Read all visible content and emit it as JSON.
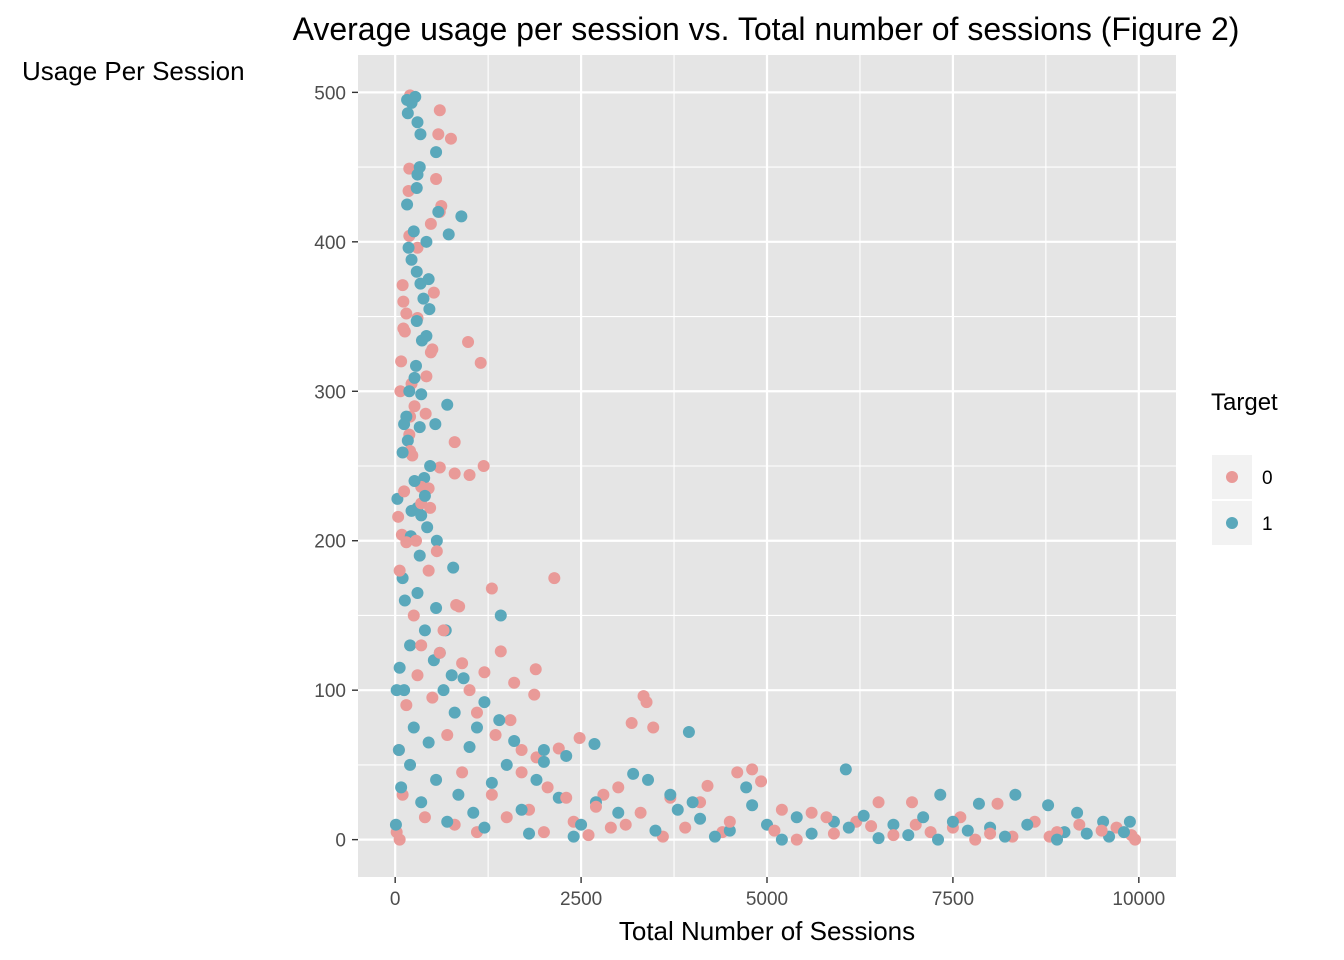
{
  "chart_data": {
    "type": "scatter",
    "title": "Average usage per session vs. Total number of sessions (Figure 2)",
    "xlabel": "Total Number of Sessions",
    "ylabel": "Usage Per Session",
    "xlim": [
      -500,
      10500
    ],
    "ylim": [
      -25,
      525
    ],
    "x_ticks": [
      0,
      2500,
      5000,
      7500,
      10000
    ],
    "x_tick_labels": [
      "0",
      "2500",
      "5000",
      "7500",
      "10000"
    ],
    "y_ticks": [
      0,
      100,
      200,
      300,
      400,
      500
    ],
    "y_tick_labels": [
      "0",
      "100",
      "200",
      "300",
      "400",
      "500"
    ],
    "x_minor_ticks": [
      1250,
      3750,
      6250,
      8750
    ],
    "y_minor_ticks": [
      50,
      150,
      250,
      350,
      450
    ],
    "grid": true,
    "panel_background": "#e5e5e5",
    "legend": {
      "title": "Target",
      "position": "right",
      "entries": [
        {
          "label": "0",
          "color": "#e99a98"
        },
        {
          "label": "1",
          "color": "#5aa8bb"
        }
      ]
    },
    "series": [
      {
        "name": "0",
        "color": "#e99a98",
        "points": [
          [
            200,
            498
          ],
          [
            600,
            488
          ],
          [
            580,
            472
          ],
          [
            750,
            469
          ],
          [
            190,
            449
          ],
          [
            180,
            434
          ],
          [
            550,
            442
          ],
          [
            620,
            424
          ],
          [
            600,
            420
          ],
          [
            480,
            412
          ],
          [
            190,
            404
          ],
          [
            300,
            396
          ],
          [
            100,
            371
          ],
          [
            520,
            366
          ],
          [
            110,
            360
          ],
          [
            150,
            352
          ],
          [
            300,
            349
          ],
          [
            130,
            340
          ],
          [
            110,
            342
          ],
          [
            980,
            333
          ],
          [
            500,
            328
          ],
          [
            480,
            326
          ],
          [
            1150,
            319
          ],
          [
            80,
            320
          ],
          [
            420,
            310
          ],
          [
            70,
            300
          ],
          [
            220,
            305
          ],
          [
            260,
            290
          ],
          [
            410,
            285
          ],
          [
            200,
            283
          ],
          [
            800,
            266
          ],
          [
            190,
            271
          ],
          [
            230,
            257
          ],
          [
            200,
            260
          ],
          [
            1190,
            250
          ],
          [
            600,
            249
          ],
          [
            800,
            245
          ],
          [
            1000,
            244
          ],
          [
            350,
            236
          ],
          [
            450,
            235
          ],
          [
            120,
            233
          ],
          [
            470,
            222
          ],
          [
            40,
            216
          ],
          [
            90,
            204
          ],
          [
            150,
            199
          ],
          [
            560,
            193
          ],
          [
            2140,
            175
          ],
          [
            1300,
            168
          ],
          [
            60,
            180
          ],
          [
            820,
            157
          ],
          [
            860,
            156
          ],
          [
            1420,
            126
          ],
          [
            1600,
            105
          ],
          [
            1890,
            114
          ],
          [
            1870,
            97
          ],
          [
            3340,
            96
          ],
          [
            3380,
            92
          ],
          [
            3180,
            78
          ],
          [
            3470,
            75
          ],
          [
            1200,
            112
          ],
          [
            1550,
            80
          ],
          [
            2480,
            68
          ],
          [
            2200,
            61
          ],
          [
            1700,
            60
          ],
          [
            1900,
            55
          ],
          [
            4800,
            47
          ],
          [
            4600,
            45
          ],
          [
            4920,
            39
          ],
          [
            4200,
            36
          ],
          [
            3000,
            35
          ],
          [
            2800,
            30
          ],
          [
            3700,
            28
          ],
          [
            4100,
            25
          ],
          [
            5200,
            20
          ],
          [
            5600,
            18
          ],
          [
            6500,
            25
          ],
          [
            6950,
            25
          ],
          [
            8100,
            24
          ],
          [
            7600,
            15
          ],
          [
            6200,
            12
          ],
          [
            5800,
            15
          ],
          [
            7000,
            10
          ],
          [
            7500,
            8
          ],
          [
            8600,
            12
          ],
          [
            9200,
            10
          ],
          [
            9700,
            8
          ],
          [
            9900,
            3
          ],
          [
            8900,
            5
          ],
          [
            8300,
            2
          ],
          [
            7800,
            0
          ],
          [
            6700,
            3
          ],
          [
            5400,
            0
          ],
          [
            4400,
            5
          ],
          [
            3600,
            2
          ],
          [
            2900,
            8
          ],
          [
            2400,
            12
          ],
          [
            1800,
            20
          ],
          [
            1300,
            30
          ],
          [
            900,
            45
          ],
          [
            700,
            70
          ],
          [
            500,
            95
          ],
          [
            300,
            110
          ],
          [
            150,
            90
          ],
          [
            50,
            60
          ],
          [
            100,
            30
          ],
          [
            20,
            5
          ],
          [
            60,
            0
          ],
          [
            400,
            15
          ],
          [
            800,
            10
          ],
          [
            1100,
            5
          ],
          [
            1500,
            15
          ],
          [
            2000,
            5
          ],
          [
            2600,
            3
          ],
          [
            3100,
            10
          ],
          [
            3900,
            8
          ],
          [
            4500,
            12
          ],
          [
            5100,
            6
          ],
          [
            5900,
            4
          ],
          [
            6400,
            9
          ],
          [
            7200,
            5
          ],
          [
            8000,
            4
          ],
          [
            8800,
            2
          ],
          [
            9500,
            6
          ],
          [
            9950,
            0
          ],
          [
            250,
            150
          ],
          [
            350,
            130
          ],
          [
            600,
            125
          ],
          [
            900,
            118
          ],
          [
            1000,
            100
          ],
          [
            450,
            180
          ],
          [
            280,
            200
          ],
          [
            350,
            225
          ],
          [
            650,
            140
          ],
          [
            1100,
            85
          ],
          [
            1350,
            70
          ],
          [
            1700,
            45
          ],
          [
            2050,
            35
          ],
          [
            2300,
            28
          ],
          [
            2700,
            22
          ],
          [
            3300,
            18
          ]
        ]
      },
      {
        "name": "1",
        "color": "#5aa8bb",
        "points": [
          [
            270,
            497
          ],
          [
            160,
            495
          ],
          [
            220,
            493
          ],
          [
            300,
            480
          ],
          [
            340,
            472
          ],
          [
            170,
            486
          ],
          [
            550,
            460
          ],
          [
            330,
            450
          ],
          [
            300,
            445
          ],
          [
            290,
            436
          ],
          [
            160,
            425
          ],
          [
            580,
            420
          ],
          [
            890,
            417
          ],
          [
            720,
            405
          ],
          [
            420,
            400
          ],
          [
            180,
            396
          ],
          [
            250,
            407
          ],
          [
            220,
            388
          ],
          [
            290,
            380
          ],
          [
            340,
            372
          ],
          [
            450,
            375
          ],
          [
            380,
            362
          ],
          [
            460,
            355
          ],
          [
            290,
            347
          ],
          [
            420,
            337
          ],
          [
            360,
            334
          ],
          [
            280,
            317
          ],
          [
            350,
            298
          ],
          [
            700,
            291
          ],
          [
            260,
            309
          ],
          [
            150,
            283
          ],
          [
            170,
            267
          ],
          [
            540,
            278
          ],
          [
            120,
            278
          ],
          [
            330,
            276
          ],
          [
            100,
            259
          ],
          [
            470,
            250
          ],
          [
            390,
            242
          ],
          [
            30,
            228
          ],
          [
            300,
            222
          ],
          [
            220,
            220
          ],
          [
            350,
            217
          ],
          [
            430,
            209
          ],
          [
            210,
            203
          ],
          [
            560,
            200
          ],
          [
            780,
            182
          ],
          [
            100,
            175
          ],
          [
            1420,
            150
          ],
          [
            130,
            160
          ],
          [
            550,
            155
          ],
          [
            680,
            140
          ],
          [
            3950,
            72
          ],
          [
            2680,
            64
          ],
          [
            4720,
            35
          ],
          [
            6060,
            47
          ],
          [
            7330,
            30
          ],
          [
            7850,
            24
          ],
          [
            8340,
            30
          ],
          [
            8780,
            23
          ],
          [
            9170,
            18
          ],
          [
            9520,
            12
          ],
          [
            9880,
            12
          ],
          [
            600,
            125
          ],
          [
            760,
            110
          ],
          [
            920,
            108
          ],
          [
            1200,
            92
          ],
          [
            1400,
            80
          ],
          [
            1100,
            75
          ],
          [
            1600,
            66
          ],
          [
            2000,
            60
          ],
          [
            2300,
            56
          ],
          [
            2000,
            52
          ],
          [
            3200,
            44
          ],
          [
            3400,
            40
          ],
          [
            3700,
            30
          ],
          [
            4000,
            25
          ],
          [
            4800,
            23
          ],
          [
            5400,
            15
          ],
          [
            5900,
            12
          ],
          [
            6300,
            16
          ],
          [
            6700,
            10
          ],
          [
            7100,
            15
          ],
          [
            7500,
            12
          ],
          [
            8000,
            8
          ],
          [
            8500,
            10
          ],
          [
            9000,
            5
          ],
          [
            9600,
            2
          ],
          [
            9300,
            4
          ],
          [
            8200,
            2
          ],
          [
            7700,
            6
          ],
          [
            6900,
            3
          ],
          [
            6100,
            8
          ],
          [
            5600,
            4
          ],
          [
            5000,
            10
          ],
          [
            4500,
            6
          ],
          [
            4100,
            14
          ],
          [
            3800,
            20
          ],
          [
            3000,
            18
          ],
          [
            2700,
            25
          ],
          [
            2500,
            10
          ],
          [
            2200,
            28
          ],
          [
            1900,
            40
          ],
          [
            1700,
            20
          ],
          [
            1500,
            50
          ],
          [
            1300,
            38
          ],
          [
            1000,
            62
          ],
          [
            800,
            85
          ],
          [
            650,
            100
          ],
          [
            520,
            120
          ],
          [
            400,
            140
          ],
          [
            300,
            165
          ],
          [
            200,
            130
          ],
          [
            120,
            100
          ],
          [
            60,
            115
          ],
          [
            20,
            100
          ],
          [
            50,
            60
          ],
          [
            80,
            35
          ],
          [
            10,
            10
          ],
          [
            200,
            50
          ],
          [
            350,
            25
          ],
          [
            700,
            12
          ],
          [
            1200,
            8
          ],
          [
            1800,
            4
          ],
          [
            2400,
            2
          ],
          [
            3500,
            6
          ],
          [
            4300,
            2
          ],
          [
            5200,
            0
          ],
          [
            6500,
            1
          ],
          [
            7300,
            0
          ],
          [
            8900,
            0
          ],
          [
            9800,
            5
          ],
          [
            250,
            75
          ],
          [
            450,
            65
          ],
          [
            550,
            40
          ],
          [
            850,
            30
          ],
          [
            1050,
            18
          ],
          [
            330,
            190
          ],
          [
            260,
            240
          ],
          [
            400,
            230
          ],
          [
            190,
            300
          ]
        ]
      }
    ]
  }
}
